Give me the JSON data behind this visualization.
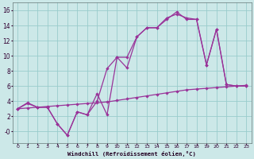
{
  "xlabel": "Windchill (Refroidissement éolien,°C)",
  "bg_color": "#cce8e8",
  "grid_color": "#99cccc",
  "line_color": "#993399",
  "xlim": [
    -0.5,
    23.5
  ],
  "ylim": [
    -1.5,
    17
  ],
  "xticks": [
    0,
    1,
    2,
    3,
    4,
    5,
    6,
    7,
    8,
    9,
    10,
    11,
    12,
    13,
    14,
    15,
    16,
    17,
    18,
    19,
    20,
    21,
    22,
    23
  ],
  "yticks": [
    0,
    2,
    4,
    6,
    8,
    10,
    12,
    14,
    16
  ],
  "ytick_labels": [
    "-0",
    "2",
    "4",
    "6",
    "8",
    "10",
    "12",
    "14",
    "16"
  ],
  "s1_x": [
    0,
    1,
    2,
    3,
    4,
    5,
    6,
    7,
    8,
    9,
    10,
    11,
    12,
    13,
    14,
    15,
    16,
    17,
    18,
    19,
    20,
    21,
    22,
    23
  ],
  "s1_y": [
    3.0,
    3.1,
    3.2,
    3.3,
    3.4,
    3.5,
    3.6,
    3.7,
    3.8,
    3.9,
    4.1,
    4.3,
    4.5,
    4.7,
    4.9,
    5.1,
    5.3,
    5.5,
    5.6,
    5.7,
    5.8,
    5.9,
    6.0,
    6.1
  ],
  "s2_x": [
    0,
    1,
    2,
    3,
    4,
    5,
    6,
    7,
    8,
    9,
    10,
    11,
    12,
    13,
    14,
    15,
    16,
    17,
    18,
    19,
    20,
    21,
    22,
    23
  ],
  "s2_y": [
    3.0,
    3.8,
    3.2,
    3.2,
    1.0,
    -0.5,
    2.6,
    2.2,
    5.0,
    2.2,
    9.8,
    8.4,
    12.5,
    13.7,
    13.7,
    15.0,
    15.5,
    15.0,
    14.8,
    8.8,
    13.5,
    6.2,
    6.0,
    6.0
  ],
  "s3_x": [
    0,
    1,
    2,
    3,
    4,
    5,
    6,
    7,
    8,
    9,
    10,
    11,
    12,
    13,
    14,
    15,
    16,
    17,
    18,
    19,
    20,
    21,
    22,
    23
  ],
  "s3_y": [
    3.0,
    3.7,
    3.2,
    3.2,
    1.0,
    -0.5,
    2.6,
    2.2,
    4.0,
    8.3,
    9.8,
    9.8,
    12.5,
    13.7,
    13.7,
    14.8,
    15.8,
    14.8,
    14.8,
    8.8,
    13.5,
    6.2,
    6.0,
    6.0
  ]
}
